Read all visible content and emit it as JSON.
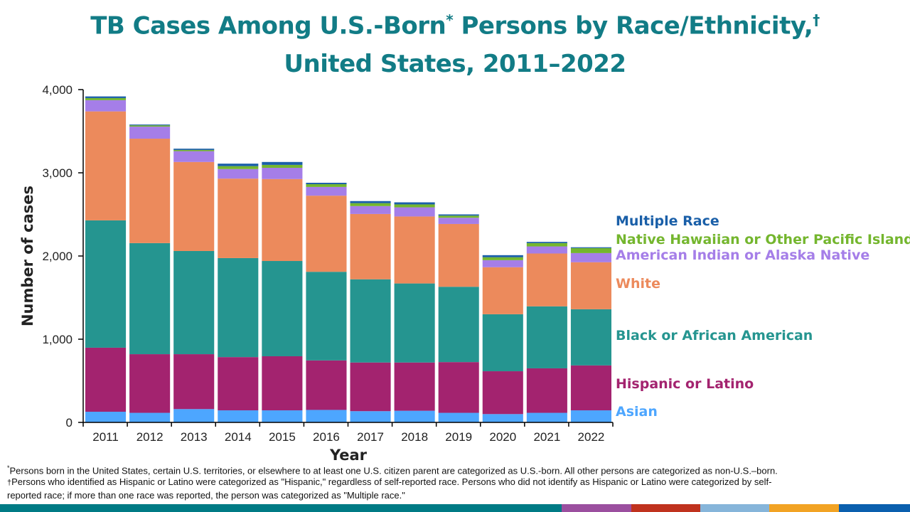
{
  "title_line1": "TB Cases Among U.S.-Born",
  "title_mark1": "*",
  "title_line1b": " Persons by Race/Ethnicity,",
  "title_mark2": "†",
  "title_line2": "United States, 2011–2022",
  "chart_data": {
    "type": "bar",
    "stacked": true,
    "xlabel": "Year",
    "ylabel": "Number of cases",
    "ylim": [
      0,
      4000
    ],
    "yticks": [
      "0",
      "1,000",
      "2,000",
      "3,000",
      "4,000"
    ],
    "ytick_values": [
      0,
      1000,
      2000,
      3000,
      4000
    ],
    "grid": false,
    "legend_placement": "right (inline labels)",
    "categories": [
      "2011",
      "2012",
      "2013",
      "2014",
      "2015",
      "2016",
      "2017",
      "2018",
      "2019",
      "2020",
      "2021",
      "2022"
    ],
    "series": [
      {
        "name": "Asian",
        "color": "#4da6ff",
        "values": [
          128,
          115,
          160,
          145,
          145,
          150,
          135,
          140,
          115,
          100,
          115,
          145
        ]
      },
      {
        "name": "Hispanic or Latino",
        "color": "#a3236f",
        "values": [
          770,
          705,
          660,
          640,
          650,
          595,
          585,
          580,
          610,
          515,
          535,
          540
        ]
      },
      {
        "name": "Black or African American",
        "color": "#259590",
        "values": [
          1530,
          1335,
          1240,
          1190,
          1145,
          1065,
          1000,
          950,
          905,
          685,
          745,
          675
        ]
      },
      {
        "name": "White",
        "color": "#ec8a5c",
        "values": [
          1310,
          1255,
          1070,
          955,
          985,
          915,
          785,
          805,
          755,
          565,
          635,
          565
        ]
      },
      {
        "name": "American Indian or Alaska Native",
        "color": "#a57ee8",
        "values": [
          135,
          145,
          130,
          115,
          135,
          105,
          95,
          110,
          75,
          85,
          85,
          110
        ]
      },
      {
        "name": "Native Hawaiian or Other Pacific Islander",
        "color": "#74b62e",
        "values": [
          25,
          15,
          15,
          35,
          35,
          33,
          35,
          35,
          25,
          35,
          40,
          60
        ]
      },
      {
        "name": "Multiple Race",
        "color": "#1a5fa8",
        "values": [
          20,
          10,
          15,
          30,
          35,
          17,
          25,
          25,
          15,
          25,
          15,
          10
        ]
      }
    ]
  },
  "footnotes": [
    {
      "mark": "*",
      "text": "Persons born in the United States, certain U.S. territories, or elsewhere to at least one U.S. citizen parent are categorized as U.S.-born. All other persons are categorized as non-U.S.–born."
    },
    {
      "mark": "†",
      "text": "Persons who identified as Hispanic or Latino were categorized as \"Hispanic,\" regardless of self-reported race. Persons who did not identify as Hispanic or Latino were categorized by self-"
    },
    {
      "mark": "",
      "text": "reported  race; if more than one race was reported,  the person was categorized as \"Multiple race.\""
    }
  ],
  "colors": {
    "title": "#127c86",
    "strip": [
      "#007b85",
      "#9b4f9f",
      "#c0321e",
      "#86b5da",
      "#f2a324",
      "#0a5fae"
    ]
  }
}
